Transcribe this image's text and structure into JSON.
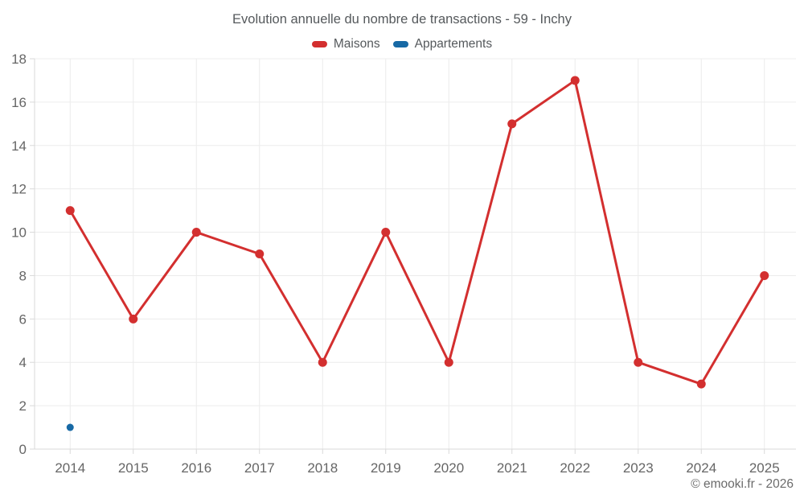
{
  "title": "Evolution annuelle du nombre de transactions - 59 - Inchy",
  "footer": "© emooki.fr - 2026",
  "legend": {
    "items": [
      {
        "label": "Maisons",
        "color": "#d32f2f"
      },
      {
        "label": "Appartements",
        "color": "#1769a5"
      }
    ]
  },
  "chart_data": {
    "type": "line",
    "title": "Evolution annuelle du nombre de transactions - 59 - Inchy",
    "categories": [
      "2014",
      "2015",
      "2016",
      "2017",
      "2018",
      "2019",
      "2020",
      "2021",
      "2022",
      "2023",
      "2024",
      "2025"
    ],
    "series": [
      {
        "name": "Maisons",
        "color": "#d32f2f",
        "values": [
          11,
          6,
          10,
          9,
          4,
          10,
          4,
          15,
          17,
          4,
          3,
          8
        ]
      },
      {
        "name": "Appartements",
        "color": "#1769a5",
        "values": [
          1,
          null,
          null,
          null,
          null,
          null,
          null,
          null,
          null,
          null,
          null,
          null
        ]
      }
    ],
    "xlabel": "",
    "ylabel": "",
    "ylim": [
      0,
      18
    ],
    "ytick_step": 2,
    "grid": true,
    "legend_position": "top"
  },
  "colors": {
    "maisons": "#d32f2f",
    "appartements": "#1769a5",
    "grid": "#ececec",
    "axis": "#d9d9d9",
    "tick_label": "#666666",
    "title_text": "#55595c",
    "footer_text": "#6b6b6b",
    "background": "#ffffff"
  }
}
